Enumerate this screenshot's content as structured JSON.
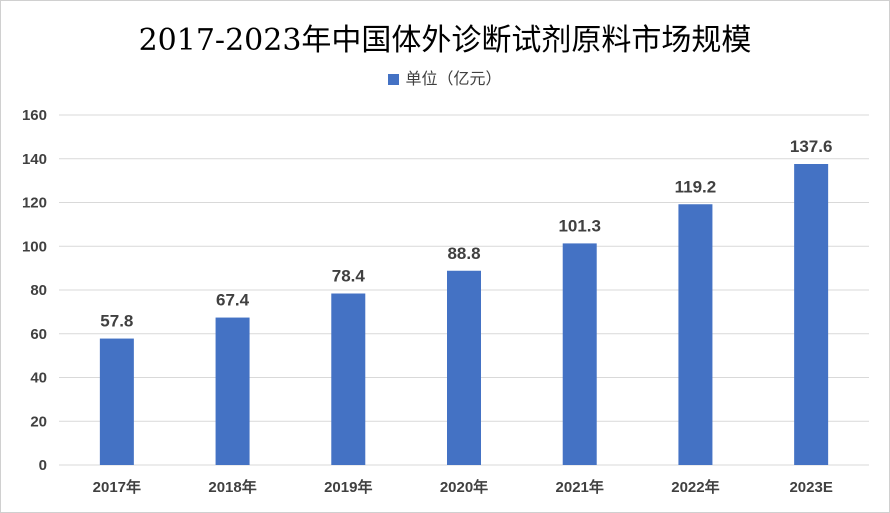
{
  "chart_data": {
    "type": "bar",
    "title": "2017-2023年中国体外诊断试剂原料市场规模",
    "categories": [
      "2017年",
      "2018年",
      "2019年",
      "2020年",
      "2021年",
      "2022年",
      "2023E"
    ],
    "series": [
      {
        "name": "单位（亿元）",
        "values": [
          57.8,
          67.4,
          78.4,
          88.8,
          101.3,
          119.2,
          137.6
        ]
      }
    ],
    "data_labels": [
      "57.8",
      "67.4",
      "78.4",
      "88.8",
      "101.3",
      "119.2",
      "137.6"
    ],
    "yticks": [
      "0",
      "20",
      "40",
      "60",
      "80",
      "100",
      "120",
      "140",
      "160"
    ],
    "ylim": [
      0,
      160
    ],
    "grid": true,
    "legend_position": "top",
    "xlabel": "",
    "ylabel": "",
    "colors": {
      "bar": "#4472C4",
      "grid": "#d9d9d9",
      "text": "#404040"
    }
  }
}
